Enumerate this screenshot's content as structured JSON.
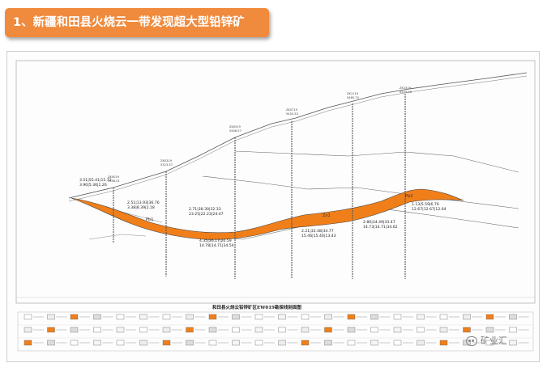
{
  "title": "1、新疆和田县火烧云一带发现超大型铅锌矿",
  "section_title": "和田县火烧云铅锌矿区EW019勘探线剖面图",
  "watermark_text": "矿业汇",
  "colors": {
    "banner": "#f08a3c",
    "ore_body": "#f07f1a",
    "line": "#555555"
  },
  "drillholes": [
    {
      "id": "ZK0019",
      "elev": "5358.01"
    },
    {
      "id": "ZK0319",
      "elev": "5323.37"
    },
    {
      "id": "ZK0519",
      "elev": "5406.57"
    },
    {
      "id": "ZK0719",
      "elev": "5452.53"
    },
    {
      "id": "ZK1119",
      "elev": "5485.70"
    },
    {
      "id": "ZK1519",
      "elev": "5529.08"
    },
    {
      "id": "ZK1919",
      "elev": "5535.96"
    }
  ],
  "ore_annotations": [
    {
      "line1": "3.51|55.41|15.72",
      "line2": "3.90|5.36|1.26"
    },
    {
      "line1": "2.51|13.93|36.76",
      "line2": "3.38|8.39|2.18"
    },
    {
      "line1": "2.71|38.30|32.33",
      "line2": "23.25|22.23|24.47"
    },
    {
      "line1": "4.35|36.17|20.59",
      "line2": "14.78|14.71|34.54"
    },
    {
      "line1": "2.21|32.48|34.77",
      "line2": "15.46|15.40|13.43"
    },
    {
      "line1": "2.80|34.49|33.47",
      "line2": "14.73|14.71|34.62"
    },
    {
      "line1": "1.13|5.59|6.76",
      "line2": "12.67|12.67|12.64"
    }
  ],
  "ore_labels": [
    "Pb1",
    "Zn1",
    "Pb2"
  ]
}
